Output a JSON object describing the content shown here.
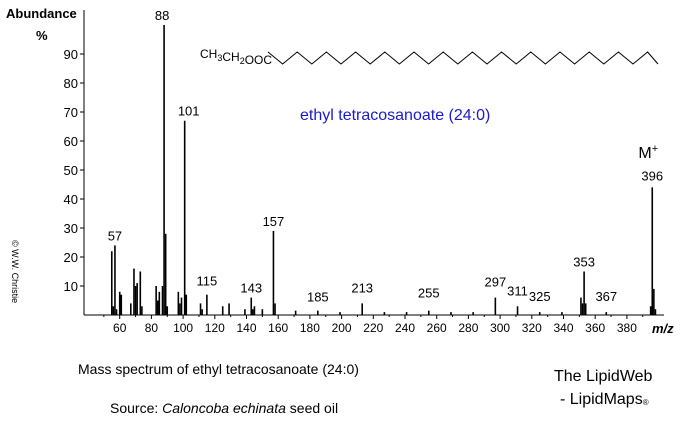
{
  "chart_data": {
    "type": "bar",
    "title": "ethyl tetracosanoate  (24:0)",
    "xlabel": "m/z",
    "ylabel": [
      "Abundance",
      "%"
    ],
    "xlim": [
      40,
      400
    ],
    "ylim": [
      0,
      100
    ],
    "x_ticks": [
      60,
      80,
      100,
      120,
      140,
      160,
      180,
      200,
      220,
      240,
      260,
      280,
      300,
      320,
      340,
      360,
      380
    ],
    "y_ticks": [
      10,
      20,
      30,
      40,
      50,
      60,
      70,
      80,
      90
    ],
    "structure_label": "CH3CH2OOC",
    "molecular_ion": {
      "label": "M",
      "superscript": "+",
      "mz": 396
    },
    "peaks": [
      {
        "mz": 55,
        "value": 22
      },
      {
        "mz": 56,
        "value": 3
      },
      {
        "mz": 57,
        "value": 24
      },
      {
        "mz": 58,
        "value": 2
      },
      {
        "mz": 60,
        "value": 8
      },
      {
        "mz": 61,
        "value": 7
      },
      {
        "mz": 67,
        "value": 4
      },
      {
        "mz": 69,
        "value": 16
      },
      {
        "mz": 70,
        "value": 10
      },
      {
        "mz": 71,
        "value": 11
      },
      {
        "mz": 73,
        "value": 15
      },
      {
        "mz": 74,
        "value": 3
      },
      {
        "mz": 83,
        "value": 10
      },
      {
        "mz": 84,
        "value": 5
      },
      {
        "mz": 85,
        "value": 8
      },
      {
        "mz": 87,
        "value": 10
      },
      {
        "mz": 88,
        "value": 100
      },
      {
        "mz": 89,
        "value": 28
      },
      {
        "mz": 90,
        "value": 3
      },
      {
        "mz": 97,
        "value": 8
      },
      {
        "mz": 98,
        "value": 4
      },
      {
        "mz": 99,
        "value": 6
      },
      {
        "mz": 101,
        "value": 67
      },
      {
        "mz": 102,
        "value": 7
      },
      {
        "mz": 111,
        "value": 4
      },
      {
        "mz": 112,
        "value": 2
      },
      {
        "mz": 115,
        "value": 7
      },
      {
        "mz": 125,
        "value": 3
      },
      {
        "mz": 129,
        "value": 4
      },
      {
        "mz": 139,
        "value": 2
      },
      {
        "mz": 143,
        "value": 6
      },
      {
        "mz": 144,
        "value": 2
      },
      {
        "mz": 145,
        "value": 3
      },
      {
        "mz": 150,
        "value": 2
      },
      {
        "mz": 157,
        "value": 29
      },
      {
        "mz": 158,
        "value": 4
      },
      {
        "mz": 171,
        "value": 1.5
      },
      {
        "mz": 185,
        "value": 1.5
      },
      {
        "mz": 199,
        "value": 1
      },
      {
        "mz": 213,
        "value": 4
      },
      {
        "mz": 227,
        "value": 1
      },
      {
        "mz": 241,
        "value": 1
      },
      {
        "mz": 255,
        "value": 1.5
      },
      {
        "mz": 269,
        "value": 1
      },
      {
        "mz": 283,
        "value": 1
      },
      {
        "mz": 297,
        "value": 6
      },
      {
        "mz": 311,
        "value": 3
      },
      {
        "mz": 325,
        "value": 1
      },
      {
        "mz": 339,
        "value": 1
      },
      {
        "mz": 351,
        "value": 6
      },
      {
        "mz": 352,
        "value": 4
      },
      {
        "mz": 353,
        "value": 15
      },
      {
        "mz": 354,
        "value": 4
      },
      {
        "mz": 367,
        "value": 1
      },
      {
        "mz": 395,
        "value": 3
      },
      {
        "mz": 396,
        "value": 44
      },
      {
        "mz": 397,
        "value": 9
      },
      {
        "mz": 398,
        "value": 2
      }
    ],
    "peak_labels": [
      {
        "mz": 57,
        "text": "57"
      },
      {
        "mz": 88,
        "text": "88"
      },
      {
        "mz": 101,
        "text": "101"
      },
      {
        "mz": 115,
        "text": "115"
      },
      {
        "mz": 143,
        "text": "143"
      },
      {
        "mz": 157,
        "text": "157"
      },
      {
        "mz": 185,
        "text": "185"
      },
      {
        "mz": 213,
        "text": "213"
      },
      {
        "mz": 255,
        "text": "255"
      },
      {
        "mz": 297,
        "text": "297"
      },
      {
        "mz": 311,
        "text": "311"
      },
      {
        "mz": 325,
        "text": "325"
      },
      {
        "mz": 353,
        "text": "353"
      },
      {
        "mz": 367,
        "text": "367"
      },
      {
        "mz": 396,
        "text": "396"
      }
    ]
  },
  "caption": "Mass spectrum of ethyl tetracosanoate (24:0)",
  "source_prefix": "Source:  ",
  "source_name": "Caloncoba echinata",
  "source_suffix": " seed oil",
  "credit_line1": "The LipidWeb",
  "credit_line2": "- LipidMaps",
  "credit_mark": "®",
  "copyright": "© W.W. Christie",
  "colors": {
    "title": "#1a1acd",
    "bars": "#000000"
  }
}
